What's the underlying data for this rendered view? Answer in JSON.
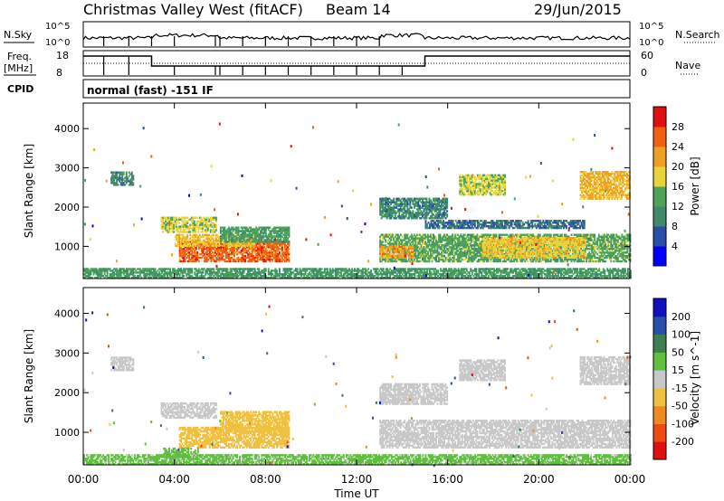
{
  "header": {
    "title": "Christmas Valley West (fitACF)",
    "beam": "Beam 14",
    "date": "29/Jun/2015"
  },
  "status_panels": {
    "nsky_label": "N.Sky",
    "nsearch_label": "N.Search",
    "nsky_ticks": [
      "10^5",
      "10^0"
    ],
    "nsearch_ticks": [
      "10^5",
      "10^0"
    ],
    "freq_label": "Freq.",
    "freq_unit": "[MHz]",
    "freq_ticks": [
      "18",
      "8"
    ],
    "nave_label": "Nave",
    "nave_ticks": [
      "60",
      "0"
    ],
    "cpid_label": "CPID",
    "cpid_text": "normal (fast) -151 IF"
  },
  "colors": {
    "power": [
      "#0000ff",
      "#2a4fa8",
      "#3f8a6a",
      "#4ea35a",
      "#e8d43a",
      "#f0a020",
      "#f06010",
      "#e01010"
    ],
    "velocity": [
      "#e01010",
      "#f04a10",
      "#f08a20",
      "#f0c040",
      "#c8c8c8",
      "#5fbf3f",
      "#3f7f4f",
      "#2a4fa8",
      "#1010c0"
    ]
  },
  "chart_data": [
    {
      "type": "heatmap",
      "name": "power",
      "ylabel": "Slant Range [km]",
      "ylim": [
        180,
        4650
      ],
      "yticks": [
        "1000",
        "2000",
        "3000",
        "4000"
      ],
      "colorbar_label": "Power [dB]",
      "colorbar_ticks": [
        "4",
        "8",
        "12",
        "16",
        "20",
        "24",
        "28"
      ],
      "colorbar_range": [
        0,
        32
      ],
      "regions": [
        {
          "x": [
            1.2,
            2.2
          ],
          "y": [
            2550,
            2900
          ],
          "v": 10
        },
        {
          "x": [
            3.4,
            5.8
          ],
          "y": [
            1350,
            1750
          ],
          "v": 17
        },
        {
          "x": [
            4.2,
            9.0
          ],
          "y": [
            600,
            1100
          ],
          "v": 26
        },
        {
          "x": [
            4.0,
            7.5
          ],
          "y": [
            1000,
            1300
          ],
          "v": 20
        },
        {
          "x": [
            6.0,
            9.0
          ],
          "y": [
            1100,
            1500
          ],
          "v": 13
        },
        {
          "x": [
            13.0,
            24.0
          ],
          "y": [
            600,
            1300
          ],
          "v": 14
        },
        {
          "x": [
            13.0,
            14.5
          ],
          "y": [
            700,
            1000
          ],
          "v": 22
        },
        {
          "x": [
            17.5,
            22.0
          ],
          "y": [
            700,
            1200
          ],
          "v": 19
        },
        {
          "x": [
            21.8,
            24.0
          ],
          "y": [
            2200,
            2900
          ],
          "v": 21
        },
        {
          "x": [
            16.5,
            18.5
          ],
          "y": [
            2300,
            2800
          ],
          "v": 17
        },
        {
          "x": [
            13.0,
            16.0
          ],
          "y": [
            1700,
            2200
          ],
          "v": 10
        },
        {
          "x": [
            15.0,
            22.0
          ],
          "y": [
            1450,
            1650
          ],
          "v": 8
        },
        {
          "x": [
            0.0,
            24.0
          ],
          "y": [
            180,
            420
          ],
          "v": 12
        }
      ]
    },
    {
      "type": "heatmap",
      "name": "velocity",
      "ylabel": "Slant Range [km]",
      "ylim": [
        180,
        4650
      ],
      "yticks": [
        "1000",
        "2000",
        "3000",
        "4000"
      ],
      "colorbar_label": "Velocity [m s^-1]",
      "colorbar_ticks": [
        "-200",
        "-100",
        "-50",
        "-15",
        "15",
        "50",
        "100",
        "200"
      ],
      "colorbar_range": [
        -250,
        250
      ],
      "regions": [
        {
          "x": [
            1.2,
            2.2
          ],
          "y": [
            2550,
            2900
          ],
          "v": 0
        },
        {
          "x": [
            3.4,
            5.8
          ],
          "y": [
            1350,
            1750
          ],
          "v": 0
        },
        {
          "x": [
            4.2,
            9.0
          ],
          "y": [
            600,
            1100
          ],
          "v": -50
        },
        {
          "x": [
            6.0,
            9.0
          ],
          "y": [
            1000,
            1500
          ],
          "v": -70
        },
        {
          "x": [
            13.0,
            24.0
          ],
          "y": [
            600,
            1300
          ],
          "v": 0
        },
        {
          "x": [
            21.8,
            24.0
          ],
          "y": [
            2200,
            2900
          ],
          "v": 0
        },
        {
          "x": [
            16.5,
            18.5
          ],
          "y": [
            2300,
            2800
          ],
          "v": 0
        },
        {
          "x": [
            13.0,
            16.0
          ],
          "y": [
            1700,
            2200
          ],
          "v": 0
        },
        {
          "x": [
            3.5,
            5.0
          ],
          "y": [
            300,
            600
          ],
          "v": 40
        },
        {
          "x": [
            0.0,
            24.0
          ],
          "y": [
            180,
            420
          ],
          "v": 30
        }
      ]
    }
  ],
  "xaxis": {
    "label": "Time UT",
    "ticks": [
      "00:00",
      "04:00",
      "08:00",
      "12:00",
      "16:00",
      "20:00",
      "00:00"
    ],
    "range": [
      0,
      24
    ]
  }
}
